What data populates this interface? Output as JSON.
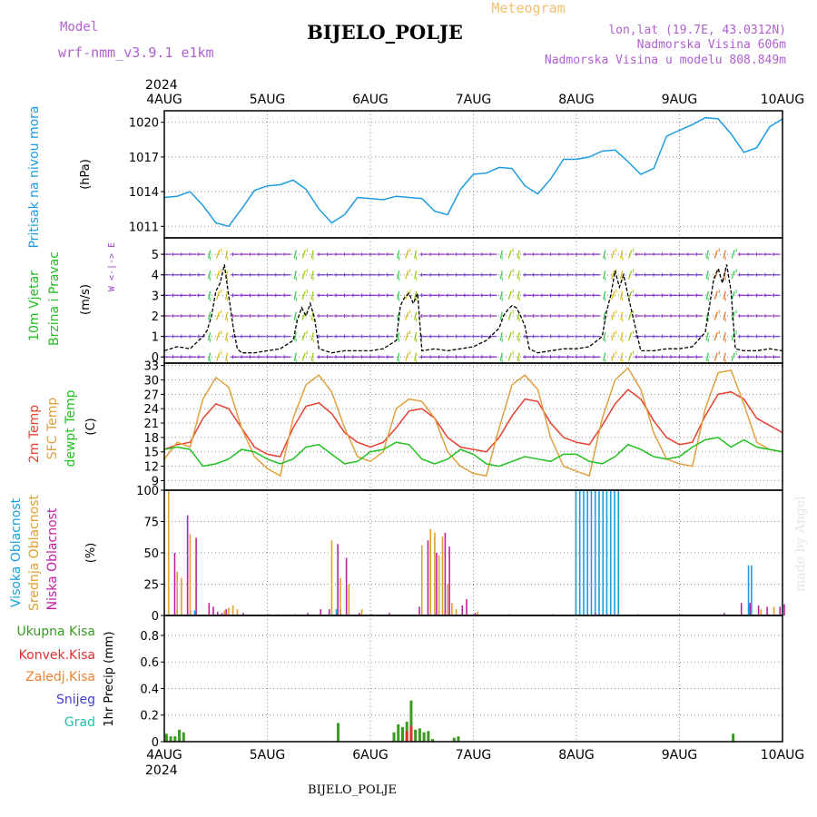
{
  "header": {
    "model_label": "Model",
    "model_name": "wrf-nmm_v3.9.1 e1km",
    "station": "BIJELO_POLJE",
    "product": "Meteogram",
    "lonlat": "lon,lat (19.7E, 43.0312N)",
    "altitude": "Nadmorska Visina 606m",
    "model_altitude": "Nadmorska Visina u modelu 808.849m",
    "credit": "made by Angel",
    "footer_station": "BIJELO_POLJE"
  },
  "colors": {
    "pressure": "#1e9be0",
    "temp2m": "#e8402f",
    "sfc_temp": "#e0a040",
    "dewpt": "#22c022",
    "cloud_high": "#1aa0e0",
    "cloud_mid": "#e0a030",
    "cloud_low": "#c020a0",
    "rain_total": "#3a9a22",
    "rain_conv": "#e03030",
    "rain_strat": "#f08030",
    "snow": "#4040d0",
    "grad": "#20c0b0",
    "wind_speed": "#000000",
    "wind_label": "#a040d0"
  },
  "chart_data": {
    "type": "line",
    "x_axis": {
      "year": "2024",
      "ticks": [
        "4AUG",
        "5AUG",
        "6AUG",
        "7AUG",
        "8AUG",
        "9AUG",
        "10AUG"
      ],
      "range_hours": [
        0,
        144
      ]
    },
    "panels": [
      {
        "id": "pressure",
        "labels": [
          "Pritisak na nivou mora"
        ],
        "unit": "(hPa)",
        "yticks": [
          1011,
          1014,
          1017,
          1020
        ],
        "ylim": [
          1010,
          1021
        ],
        "series": [
          {
            "name": "Pritisak na nivou mora",
            "x": [
              0,
              3,
              6,
              9,
              12,
              15,
              18,
              21,
              24,
              27,
              30,
              33,
              36,
              39,
              42,
              45,
              48,
              51,
              54,
              57,
              60,
              63,
              66,
              69,
              72,
              75,
              78,
              81,
              84,
              87,
              90,
              93,
              96,
              99,
              102,
              105,
              108,
              111,
              114,
              117,
              120,
              123,
              126,
              129,
              132,
              135,
              138,
              141,
              144
            ],
            "values": [
              1013.5,
              1013.6,
              1014.0,
              1012.8,
              1011.3,
              1011.0,
              1012.5,
              1014.1,
              1014.5,
              1014.6,
              1015.0,
              1014.2,
              1012.5,
              1011.3,
              1012.0,
              1013.5,
              1013.4,
              1013.3,
              1013.6,
              1013.5,
              1013.4,
              1012.3,
              1012.0,
              1014.2,
              1015.5,
              1015.6,
              1016.1,
              1016.0,
              1014.5,
              1013.8,
              1015.1,
              1016.8,
              1016.8,
              1017.0,
              1017.5,
              1017.6,
              1016.6,
              1015.5,
              1016.0,
              1018.8,
              1019.3,
              1019.8,
              1020.4,
              1020.3,
              1019.0,
              1017.4,
              1017.8,
              1019.6,
              1020.3
            ]
          }
        ]
      },
      {
        "id": "wind",
        "labels": [
          "10m Vjetar",
          "Brzina i Pravac"
        ],
        "unit": "(m/s)",
        "direction_legend": "W <-|-> E",
        "yticks": [
          0,
          1,
          2,
          3,
          4,
          5
        ],
        "ylim": [
          -0.3,
          5.8
        ],
        "series": [
          {
            "name": "Brzina",
            "x": [
              0,
              3,
              6,
              9,
              10,
              11,
              12,
              13,
              14,
              15,
              16,
              17,
              18,
              21,
              24,
              27,
              30,
              31,
              32,
              33,
              34,
              35,
              36,
              39,
              42,
              45,
              48,
              51,
              54,
              55,
              56,
              57,
              58,
              59,
              60,
              63,
              66,
              69,
              72,
              75,
              78,
              79,
              80,
              81,
              82,
              83,
              84,
              85,
              87,
              90,
              93,
              96,
              99,
              102,
              103,
              104,
              105,
              106,
              107,
              108,
              111,
              114,
              117,
              120,
              123,
              126,
              127,
              128,
              129,
              130,
              131,
              132,
              133,
              135,
              138,
              141,
              144
            ],
            "values": [
              0.3,
              0.5,
              0.4,
              1.0,
              1.3,
              2.0,
              3.2,
              3.6,
              4.5,
              3.0,
              1.5,
              0.4,
              0.2,
              0.2,
              0.3,
              0.4,
              0.8,
              1.8,
              2.4,
              2.0,
              2.6,
              1.9,
              0.4,
              0.2,
              0.3,
              0.3,
              0.3,
              0.4,
              0.8,
              2.5,
              2.9,
              3.1,
              2.6,
              3.1,
              0.3,
              0.4,
              0.3,
              0.4,
              0.5,
              0.8,
              1.4,
              2.0,
              2.3,
              2.5,
              2.4,
              2.0,
              1.5,
              0.4,
              0.2,
              0.3,
              0.4,
              0.4,
              0.5,
              1.0,
              2.2,
              3.0,
              4.2,
              3.4,
              4.0,
              3.0,
              0.3,
              0.3,
              0.4,
              0.4,
              0.5,
              1.2,
              2.5,
              3.8,
              4.3,
              3.6,
              4.5,
              3.2,
              0.4,
              0.3,
              0.3,
              0.4,
              0.3
            ]
          }
        ]
      },
      {
        "id": "temperature",
        "labels": [
          "2m Temp",
          "SFC Temp",
          "dewpt Temp"
        ],
        "unit": "(C)",
        "yticks": [
          9,
          12,
          15,
          18,
          21,
          24,
          27,
          30,
          33
        ],
        "ylim": [
          7,
          33.5
        ],
        "series": [
          {
            "name": "2m Temp",
            "x": [
              0,
              3,
              6,
              9,
              12,
              15,
              18,
              21,
              24,
              27,
              30,
              33,
              36,
              39,
              42,
              45,
              48,
              51,
              54,
              57,
              60,
              63,
              66,
              69,
              72,
              75,
              78,
              81,
              84,
              87,
              90,
              93,
              96,
              99,
              102,
              105,
              108,
              111,
              114,
              117,
              120,
              123,
              126,
              129,
              132,
              135,
              138,
              141,
              144
            ],
            "values": [
              15.5,
              16.5,
              17.0,
              22.0,
              25.0,
              24.0,
              20.0,
              16.0,
              14.5,
              14.0,
              20.0,
              24.5,
              25.2,
              23.0,
              19.0,
              17.0,
              16.0,
              17.0,
              20.0,
              23.5,
              24.0,
              22.0,
              18.0,
              16.0,
              15.5,
              15.0,
              18.0,
              22.5,
              26.0,
              25.5,
              21.0,
              18.0,
              17.0,
              16.5,
              20.5,
              25.0,
              28.0,
              26.0,
              21.5,
              18.0,
              16.5,
              17.0,
              22.5,
              27.0,
              27.5,
              26.0,
              22.0,
              20.5,
              19.0
            ]
          },
          {
            "name": "SFC Temp",
            "x": [
              0,
              3,
              6,
              9,
              12,
              15,
              18,
              21,
              24,
              27,
              30,
              33,
              36,
              39,
              42,
              45,
              48,
              51,
              54,
              57,
              60,
              63,
              66,
              69,
              72,
              75,
              78,
              81,
              84,
              87,
              90,
              93,
              96,
              99,
              102,
              105,
              108,
              111,
              114,
              117,
              120,
              123,
              126,
              129,
              132,
              135,
              138,
              141,
              144
            ],
            "values": [
              13.5,
              17.0,
              16.0,
              26.0,
              30.5,
              28.5,
              20.0,
              14.0,
              11.5,
              10.0,
              22.0,
              29.0,
              31.0,
              27.5,
              20.0,
              14.0,
              13.0,
              15.0,
              24.0,
              26.0,
              25.5,
              22.0,
              15.0,
              12.0,
              10.5,
              10.0,
              20.0,
              29.0,
              31.0,
              28.0,
              18.0,
              12.0,
              11.0,
              10.0,
              22.0,
              30.0,
              32.5,
              28.0,
              19.0,
              13.5,
              12.5,
              12.0,
              24.0,
              31.5,
              32.0,
              25.0,
              17.0,
              15.5,
              15.0
            ]
          },
          {
            "name": "dewpt Temp",
            "x": [
              0,
              3,
              6,
              9,
              12,
              15,
              18,
              21,
              24,
              27,
              30,
              33,
              36,
              39,
              42,
              45,
              48,
              51,
              54,
              57,
              60,
              63,
              66,
              69,
              72,
              75,
              78,
              81,
              84,
              87,
              90,
              93,
              96,
              99,
              102,
              105,
              108,
              111,
              114,
              117,
              120,
              123,
              126,
              129,
              132,
              135,
              138,
              141,
              144
            ],
            "values": [
              15.5,
              16.0,
              15.5,
              12.0,
              12.5,
              13.5,
              15.5,
              15.0,
              13.5,
              12.5,
              13.5,
              16.0,
              16.5,
              14.5,
              12.5,
              13.0,
              15.0,
              15.5,
              17.0,
              16.5,
              13.5,
              12.5,
              13.5,
              15.5,
              14.5,
              12.5,
              12.0,
              13.0,
              14.0,
              13.5,
              13.0,
              14.5,
              14.5,
              13.0,
              12.5,
              14.0,
              16.5,
              15.5,
              14.0,
              13.5,
              14.0,
              16.0,
              17.5,
              18.0,
              16.0,
              17.5,
              16.0,
              15.5,
              15.0
            ]
          }
        ]
      },
      {
        "id": "clouds",
        "labels": [
          "Visoka Oblacnost",
          "Srednja Oblacnost",
          "Niska Oblacnost"
        ],
        "unit": "(%)",
        "yticks": [
          0,
          25,
          50,
          75,
          100
        ],
        "ylim": [
          0,
          100
        ],
        "series": [
          {
            "name": "Visoka Oblacnost",
            "x": [
              6.5,
              7.5,
              40.5,
              41.5,
              96.3,
              97.2,
              98.1,
              99.0,
              99.9,
              100.8,
              101.7,
              102.6,
              103.5,
              104.4,
              105.3,
              106.2,
              136.5,
              137.2
            ],
            "values": [
              4,
              4,
              5,
              5,
              100,
              100,
              100,
              100,
              100,
              100,
              100,
              100,
              100,
              100,
              100,
              100,
              40,
              40
            ]
          },
          {
            "name": "Srednja Oblacnost",
            "x": [
              1,
              3,
              4,
              6,
              14,
              15,
              16,
              17,
              39,
              41,
              43,
              46,
              60,
              62,
              63,
              64,
              64.8,
              66,
              67,
              68,
              73,
              139,
              142
            ],
            "values": [
              100,
              35,
              30,
              65,
              4,
              6,
              8,
              5,
              60,
              30,
              25,
              5,
              56,
              69,
              66,
              48,
              63,
              25,
              10,
              5,
              3,
              5,
              7
            ]
          },
          {
            "name": "Niska Oblacnost",
            "x": [
              2,
              5,
              7,
              10,
              11,
              12,
              13,
              14,
              18,
              24,
              26,
              30,
              33,
              36,
              38,
              40,
              42,
              45,
              48,
              52,
              59,
              61,
              63,
              65,
              66,
              69,
              70,
              72,
              80,
              90,
              100,
              110,
              120,
              130,
              134,
              136,
              138,
              140,
              143,
              144
            ],
            "values": [
              50,
              80,
              62,
              10,
              7,
              3,
              2,
              5,
              2,
              1,
              1,
              1,
              2,
              5,
              5,
              57,
              46,
              2,
              1,
              2,
              7,
              60,
              50,
              66,
              55,
              8,
              13,
              2,
              1,
              1,
              2,
              1,
              1,
              2,
              10,
              10,
              8,
              7,
              7,
              9
            ]
          }
        ]
      },
      {
        "id": "precip",
        "labels": [
          "Ukupna Kisa",
          "Konvek.Kisa",
          "Zaledj.Kisa",
          "Snijeg",
          "Grad"
        ],
        "unit": "1hr Precip (mm)",
        "yticks": [
          0,
          0.2,
          0.4,
          0.6,
          0.8
        ],
        "ylim": [
          0,
          0.95
        ],
        "series": [
          {
            "name": "Ukupna Kisa",
            "x": [
              0.5,
              1.5,
              2.5,
              3.5,
              4.5,
              40.5,
              53.5,
              54.5,
              55.5,
              56.5,
              57.5,
              58.5,
              59.5,
              60.5,
              61.5,
              62.5,
              67.5,
              68.5,
              132.5
            ],
            "values": [
              0.06,
              0.04,
              0.04,
              0.09,
              0.07,
              0.14,
              0.07,
              0.13,
              0.11,
              0.15,
              0.31,
              0.09,
              0.1,
              0.07,
              0.08,
              0.02,
              0.03,
              0.04,
              0.06
            ]
          },
          {
            "name": "Konvek.Kisa",
            "x": [
              56.5,
              57.5
            ],
            "values": [
              0.08,
              0.12
            ]
          }
        ]
      }
    ]
  }
}
